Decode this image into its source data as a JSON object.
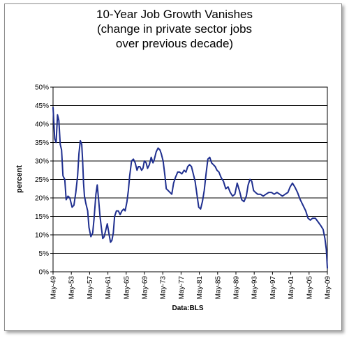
{
  "chart_data": {
    "type": "line",
    "title_lines": [
      "10-Year Job Growth Vanishes",
      "(change in private sector jobs",
      "over previous decade)"
    ],
    "ylabel": "percent",
    "xlabel": "Data:BLS",
    "ylim": [
      0,
      50
    ],
    "yticks": [
      "0%",
      "5%",
      "10%",
      "15%",
      "20%",
      "25%",
      "30%",
      "35%",
      "40%",
      "45%",
      "50%"
    ],
    "xticks": [
      "May-49",
      "May-53",
      "May-57",
      "May-61",
      "May-65",
      "May-69",
      "May-73",
      "May-77",
      "May-81",
      "May-85",
      "May-89",
      "May-93",
      "May-97",
      "May-01",
      "May-05",
      "May-09"
    ],
    "xlim": [
      1949.33,
      2009.33
    ],
    "grid": true,
    "line_color": "#1f2f8f",
    "series": [
      {
        "x": [
          1949.33,
          1949.7,
          1950.0,
          1950.3,
          1950.6,
          1950.9,
          1951.2,
          1951.5,
          1951.9,
          1952.2,
          1952.6,
          1953.0,
          1953.5,
          1953.9,
          1954.3,
          1954.7,
          1955.0,
          1955.3,
          1955.6,
          1955.8,
          1956.0,
          1956.2,
          1956.5,
          1956.9,
          1957.2,
          1957.6,
          1958.0,
          1958.3,
          1958.7,
          1959.0,
          1959.3,
          1959.6,
          1959.9,
          1960.2,
          1960.5,
          1960.9,
          1961.2,
          1961.6,
          1961.9,
          1962.2,
          1962.5,
          1962.8,
          1963.2,
          1963.6,
          1964.0,
          1964.4,
          1964.8,
          1965.1,
          1965.5,
          1965.8,
          1966.1,
          1966.5,
          1966.9,
          1967.3,
          1967.7,
          1968.0,
          1968.3,
          1968.7,
          1969.0,
          1969.3,
          1969.7,
          1970.0,
          1970.4,
          1970.8,
          1971.2,
          1971.5,
          1971.9,
          1972.3,
          1972.7,
          1973.0,
          1973.4,
          1973.8,
          1974.1,
          1974.5,
          1974.9,
          1975.3,
          1975.7,
          1976.1,
          1976.6,
          1977.0,
          1977.5,
          1978.0,
          1978.4,
          1978.8,
          1979.2,
          1979.6,
          1980.0,
          1980.4,
          1980.8,
          1981.2,
          1981.6,
          1982.0,
          1982.4,
          1982.8,
          1983.2,
          1983.6,
          1984.0,
          1984.4,
          1984.8,
          1985.2,
          1985.6,
          1986.1,
          1986.6,
          1987.1,
          1987.6,
          1988.1,
          1988.6,
          1989.1,
          1989.6,
          1990.1,
          1990.6,
          1991.1,
          1991.6,
          1992.0,
          1992.4,
          1992.8,
          1993.2,
          1993.6,
          1994.1,
          1994.7,
          1995.3,
          1995.9,
          1996.5,
          1997.1,
          1997.7,
          1998.3,
          1998.9,
          1999.5,
          2000.1,
          2000.7,
          2001.2,
          2001.7,
          2002.2,
          2002.8,
          2003.4,
          2004.0,
          2004.6,
          2005.1,
          2005.6,
          2006.1,
          2006.7,
          2007.3,
          2007.9,
          2008.4,
          2008.8,
          2009.1,
          2009.33
        ],
        "y": [
          44.5,
          36.0,
          35.0,
          42.5,
          41.0,
          34.5,
          33.0,
          26.0,
          25.0,
          19.5,
          20.5,
          20.0,
          17.5,
          18.0,
          21.5,
          26.0,
          32.0,
          35.5,
          34.5,
          30.0,
          24.0,
          20.5,
          18.5,
          16.5,
          12.0,
          9.5,
          10.5,
          14.5,
          21.0,
          23.5,
          19.5,
          15.0,
          12.0,
          9.0,
          9.5,
          11.5,
          13.0,
          10.0,
          8.0,
          8.5,
          10.5,
          15.0,
          16.5,
          16.5,
          15.5,
          16.5,
          17.0,
          16.5,
          19.0,
          22.0,
          26.0,
          30.0,
          30.5,
          29.5,
          27.5,
          28.5,
          28.5,
          27.5,
          28.0,
          30.0,
          29.5,
          28.0,
          29.0,
          31.0,
          29.5,
          30.5,
          32.5,
          33.5,
          33.0,
          32.0,
          30.0,
          26.0,
          22.5,
          22.0,
          21.5,
          21.0,
          24.0,
          25.5,
          27.0,
          27.0,
          26.5,
          27.5,
          27.0,
          28.5,
          29.0,
          28.5,
          26.5,
          24.5,
          21.0,
          17.5,
          17.0,
          19.0,
          22.0,
          26.5,
          30.5,
          31.0,
          29.5,
          29.0,
          28.5,
          27.5,
          27.0,
          25.5,
          24.5,
          22.5,
          23.0,
          21.5,
          20.5,
          21.0,
          24.0,
          22.0,
          19.5,
          19.0,
          20.5,
          23.5,
          25.0,
          24.5,
          22.0,
          21.5,
          21.0,
          21.0,
          20.5,
          21.0,
          21.5,
          21.5,
          21.0,
          21.5,
          21.0,
          20.5,
          21.0,
          21.5,
          23.0,
          24.0,
          23.0,
          21.5,
          19.5,
          18.0,
          16.5,
          14.5,
          14.0,
          14.5,
          14.5,
          13.5,
          12.5,
          11.5,
          9.0,
          6.0,
          1.0
        ]
      }
    ]
  }
}
